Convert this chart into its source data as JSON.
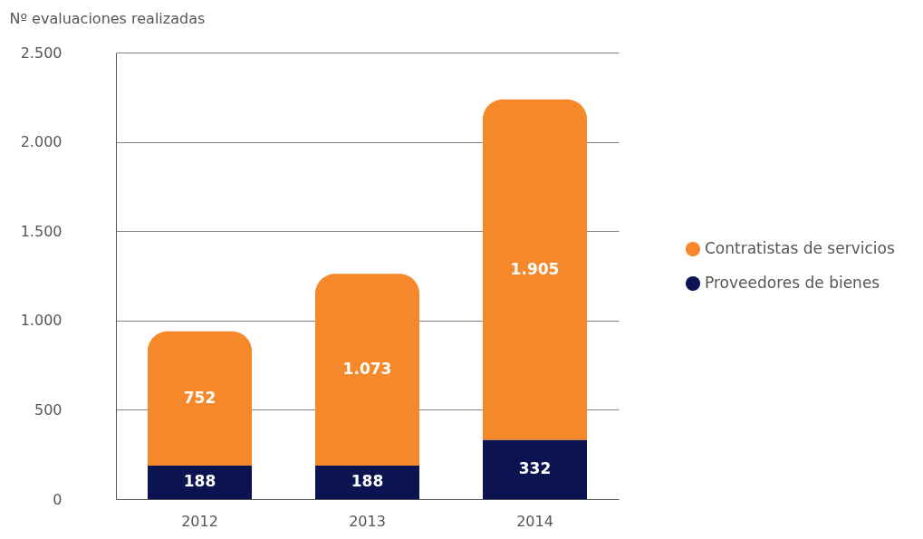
{
  "chart_data": {
    "type": "bar",
    "stacked": true,
    "ylabel": "Nº evaluaciones realizadas",
    "categories": [
      "2012",
      "2013",
      "2014"
    ],
    "series": [
      {
        "name": "Proveedores de bienes",
        "color": "#0b1450",
        "values": [
          188,
          188,
          332
        ],
        "value_labels": [
          "188",
          "188",
          "332"
        ]
      },
      {
        "name": "Contratistas de servicios",
        "color": "#f4882a",
        "values": [
          752,
          1073,
          1905
        ],
        "value_labels": [
          "752",
          "1.073",
          "1.905"
        ]
      }
    ],
    "ylim": [
      0,
      2500
    ],
    "yticks": [
      0,
      500,
      {
        "value": 1000,
        "label": "1.000"
      },
      {
        "value": 1500,
        "label": "1.500"
      },
      {
        "value": 2000,
        "label": "2.000"
      },
      {
        "value": 2500,
        "label": "2.500"
      }
    ],
    "grid": "y",
    "legend": "right"
  }
}
